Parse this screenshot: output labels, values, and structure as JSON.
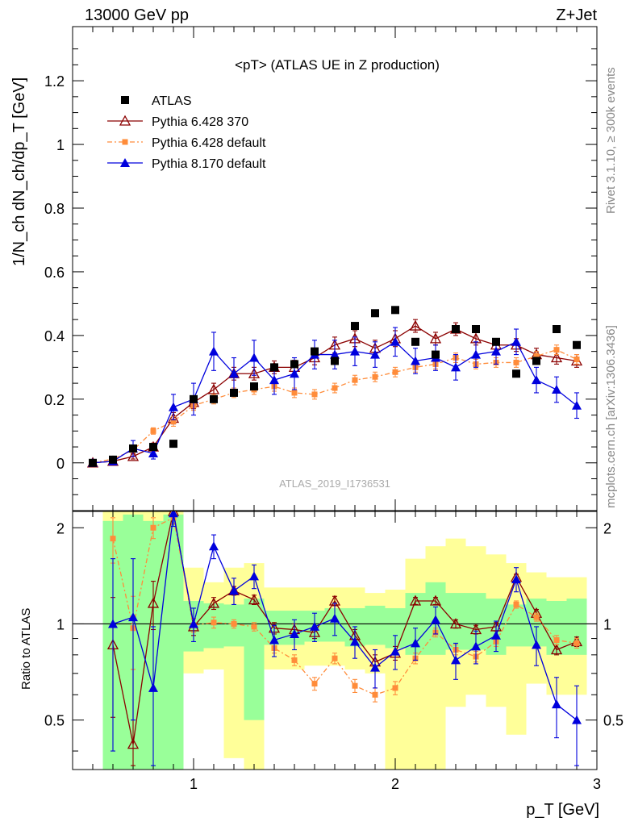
{
  "header": {
    "left": "13000 GeV pp",
    "right": "Z+Jet"
  },
  "side_labels": {
    "rivet": "Rivet 3.1.10, ≥ 300k events",
    "mcplots": "mcplots.cern.ch [arXiv:1306.3436]"
  },
  "watermark": "ATLAS_2019_I1736531",
  "plot_title": "<pT> (ATLAS UE in Z production)",
  "colors": {
    "atlas": "#000000",
    "p6_370": "#8b0000",
    "p6_def": "#ff8c3a",
    "p8_def": "#0000dd",
    "band_green": "#99ff99",
    "band_yellow": "#ffff99"
  },
  "chart_data": [
    {
      "type": "scatter",
      "ylabel": "1/N_ch dN_ch/dp_T [GeV]",
      "ylim": [
        -0.15,
        1.37
      ],
      "xlim": [
        0.4,
        3.0
      ],
      "x_ticks": [
        "1",
        "2",
        "3"
      ],
      "y_ticks": [
        "0",
        "0.2",
        "0.4",
        "0.6",
        "0.8",
        "1",
        "1.2"
      ],
      "x": [
        0.5,
        0.6,
        0.7,
        0.8,
        0.9,
        1.0,
        1.1,
        1.2,
        1.3,
        1.4,
        1.5,
        1.6,
        1.7,
        1.8,
        1.9,
        2.0,
        2.1,
        2.2,
        2.3,
        2.4,
        2.5,
        2.6,
        2.7,
        2.8,
        2.9
      ],
      "series": [
        {
          "name": "ATLAS",
          "values": [
            0.0,
            0.01,
            0.045,
            0.05,
            0.06,
            0.2,
            0.2,
            0.22,
            0.24,
            0.3,
            0.31,
            0.35,
            0.32,
            0.43,
            0.47,
            0.48,
            0.38,
            0.34,
            0.42,
            0.42,
            0.38,
            0.28,
            0.32,
            0.42,
            0.37
          ]
        },
        {
          "name": "Pythia 6.428 370",
          "values": [
            0.0,
            0.005,
            0.02,
            0.05,
            0.14,
            0.19,
            0.23,
            0.28,
            0.28,
            0.3,
            0.3,
            0.33,
            0.37,
            0.39,
            0.36,
            0.39,
            0.43,
            0.39,
            0.42,
            0.39,
            0.37,
            0.37,
            0.34,
            0.33,
            0.32
          ]
        },
        {
          "name": "Pythia 6.428 default",
          "values": [
            0.0,
            0.012,
            0.04,
            0.1,
            0.13,
            0.18,
            0.2,
            0.22,
            0.23,
            0.24,
            0.22,
            0.215,
            0.235,
            0.26,
            0.27,
            0.285,
            0.3,
            0.31,
            0.33,
            0.31,
            0.315,
            0.315,
            0.335,
            0.355,
            0.325
          ]
        },
        {
          "name": "Pythia 8.170 default",
          "values": [
            0.0,
            0.005,
            0.045,
            0.03,
            0.175,
            0.2,
            0.35,
            0.28,
            0.33,
            0.26,
            0.28,
            0.34,
            0.34,
            0.35,
            0.34,
            0.38,
            0.32,
            0.33,
            0.3,
            0.34,
            0.35,
            0.38,
            0.26,
            0.23,
            0.18
          ]
        }
      ],
      "errors": [
        [
          0,
          0,
          0,
          0,
          0,
          0,
          0,
          0,
          0,
          0,
          0,
          0,
          0,
          0,
          0,
          0,
          0,
          0,
          0,
          0,
          0,
          0,
          0,
          0,
          0
        ],
        [
          0.003,
          0.005,
          0.008,
          0.012,
          0.018,
          0.02,
          0.02,
          0.02,
          0.02,
          0.02,
          0.022,
          0.022,
          0.025,
          0.025,
          0.025,
          0.025,
          0.02,
          0.02,
          0.02,
          0.02,
          0.02,
          0.02,
          0.02,
          0.02,
          0.02
        ],
        [
          0.003,
          0.004,
          0.006,
          0.01,
          0.015,
          0.015,
          0.015,
          0.015,
          0.015,
          0.015,
          0.015,
          0.015,
          0.015,
          0.015,
          0.015,
          0.015,
          0.015,
          0.015,
          0.015,
          0.015,
          0.015,
          0.015,
          0.015,
          0.015,
          0.015
        ],
        [
          0.003,
          0.005,
          0.025,
          0.018,
          0.04,
          0.05,
          0.06,
          0.05,
          0.055,
          0.045,
          0.05,
          0.045,
          0.045,
          0.045,
          0.04,
          0.045,
          0.04,
          0.04,
          0.04,
          0.04,
          0.04,
          0.04,
          0.04,
          0.04,
          0.04
        ]
      ]
    },
    {
      "type": "scatter",
      "ylabel": "Ratio to ATLAS",
      "xlabel": "p_T [GeV]",
      "ylim": [
        0.35,
        2.25
      ],
      "xlim": [
        0.4,
        3.0
      ],
      "x_ticks": [
        "1",
        "2",
        "3"
      ],
      "y_ticks": [
        "0.5",
        "1",
        "2"
      ],
      "reference_line": 1,
      "x": [
        0.6,
        0.7,
        0.8,
        0.9,
        1.0,
        1.1,
        1.2,
        1.3,
        1.4,
        1.5,
        1.6,
        1.7,
        1.8,
        1.9,
        2.0,
        2.1,
        2.2,
        2.3,
        2.4,
        2.5,
        2.6,
        2.7,
        2.8,
        2.9
      ],
      "series": [
        {
          "name": "Pythia 6.428 370",
          "values": [
            0.86,
            0.42,
            1.16,
            2.25,
            0.98,
            1.16,
            1.27,
            1.19,
            0.97,
            0.96,
            0.94,
            1.18,
            0.92,
            0.76,
            0.81,
            1.18,
            1.18,
            1.0,
            0.96,
            0.98,
            1.4,
            1.08,
            0.83,
            0.88
          ]
        },
        {
          "name": "Pythia 6.428 default",
          "values": [
            1.85,
            0.97,
            2.0,
            2.15,
            0.99,
            1.01,
            1.0,
            0.98,
            0.84,
            0.77,
            0.65,
            0.78,
            0.64,
            0.6,
            0.63,
            0.78,
            0.94,
            0.83,
            0.79,
            0.88,
            1.15,
            1.05,
            0.89,
            0.87
          ]
        },
        {
          "name": "Pythia 8.170 default",
          "values": [
            1.0,
            1.05,
            0.63,
            2.22,
            1.0,
            1.75,
            1.27,
            1.41,
            0.89,
            0.93,
            0.98,
            1.04,
            0.88,
            0.73,
            0.82,
            0.87,
            1.03,
            0.77,
            0.85,
            0.92,
            1.38,
            0.86,
            0.56,
            0.5
          ]
        }
      ],
      "errors": [
        [
          0.35,
          0.3,
          0.2,
          0.1,
          0.06,
          0.05,
          0.04,
          0.04,
          0.04,
          0.04,
          0.04,
          0.04,
          0.04,
          0.04,
          0.04,
          0.03,
          0.03,
          0.03,
          0.03,
          0.03,
          0.03,
          0.03,
          0.03,
          0.03
        ],
        [
          0.3,
          0.25,
          0.15,
          0.1,
          0.05,
          0.04,
          0.03,
          0.03,
          0.03,
          0.03,
          0.03,
          0.03,
          0.03,
          0.03,
          0.03,
          0.03,
          0.03,
          0.03,
          0.03,
          0.03,
          0.03,
          0.03,
          0.03,
          0.03
        ],
        [
          0.6,
          0.55,
          0.35,
          0.2,
          0.12,
          0.15,
          0.12,
          0.12,
          0.1,
          0.1,
          0.1,
          0.12,
          0.1,
          0.1,
          0.1,
          0.1,
          0.1,
          0.1,
          0.1,
          0.1,
          0.12,
          0.12,
          0.12,
          0.14
        ]
      ],
      "bands": {
        "bins": [
          0.55,
          0.65,
          0.75,
          0.85,
          0.95,
          1.05,
          1.15,
          1.25,
          1.35,
          1.45,
          1.55,
          1.65,
          1.75,
          1.85,
          1.95,
          2.05,
          2.15,
          2.25,
          2.35,
          2.45,
          2.55,
          2.65,
          2.75,
          2.85,
          2.95
        ],
        "green": [
          [
            0.35,
            2.1
          ],
          [
            0.35,
            2.2
          ],
          [
            0.35,
            2.1
          ],
          [
            0.35,
            2.2
          ],
          [
            0.82,
            1.18
          ],
          [
            0.84,
            1.16
          ],
          [
            0.85,
            1.15
          ],
          [
            0.5,
            1.2
          ],
          [
            0.86,
            1.1
          ],
          [
            0.86,
            1.1
          ],
          [
            0.88,
            1.1
          ],
          [
            0.88,
            1.12
          ],
          [
            0.85,
            1.12
          ],
          [
            0.86,
            1.14
          ],
          [
            0.84,
            1.12
          ],
          [
            0.8,
            1.25
          ],
          [
            0.8,
            1.35
          ],
          [
            0.83,
            1.25
          ],
          [
            0.83,
            1.25
          ],
          [
            0.8,
            1.2
          ],
          [
            0.85,
            1.15
          ],
          [
            0.85,
            1.2
          ],
          [
            0.8,
            1.18
          ],
          [
            0.8,
            1.2
          ]
        ],
        "yellow": [
          [
            0.35,
            2.25
          ],
          [
            0.35,
            2.25
          ],
          [
            0.35,
            2.25
          ],
          [
            0.35,
            2.25
          ],
          [
            0.7,
            1.5
          ],
          [
            0.72,
            1.35
          ],
          [
            0.38,
            1.5
          ],
          [
            0.35,
            1.55
          ],
          [
            0.72,
            1.3
          ],
          [
            0.72,
            1.3
          ],
          [
            0.74,
            1.3
          ],
          [
            0.74,
            1.3
          ],
          [
            0.72,
            1.3
          ],
          [
            0.7,
            1.25
          ],
          [
            0.35,
            1.28
          ],
          [
            0.35,
            1.6
          ],
          [
            0.35,
            1.75
          ],
          [
            0.55,
            1.85
          ],
          [
            0.6,
            1.75
          ],
          [
            0.55,
            1.65
          ],
          [
            0.45,
            1.55
          ],
          [
            0.65,
            1.45
          ],
          [
            0.6,
            1.4
          ],
          [
            0.6,
            1.4
          ]
        ]
      }
    }
  ]
}
